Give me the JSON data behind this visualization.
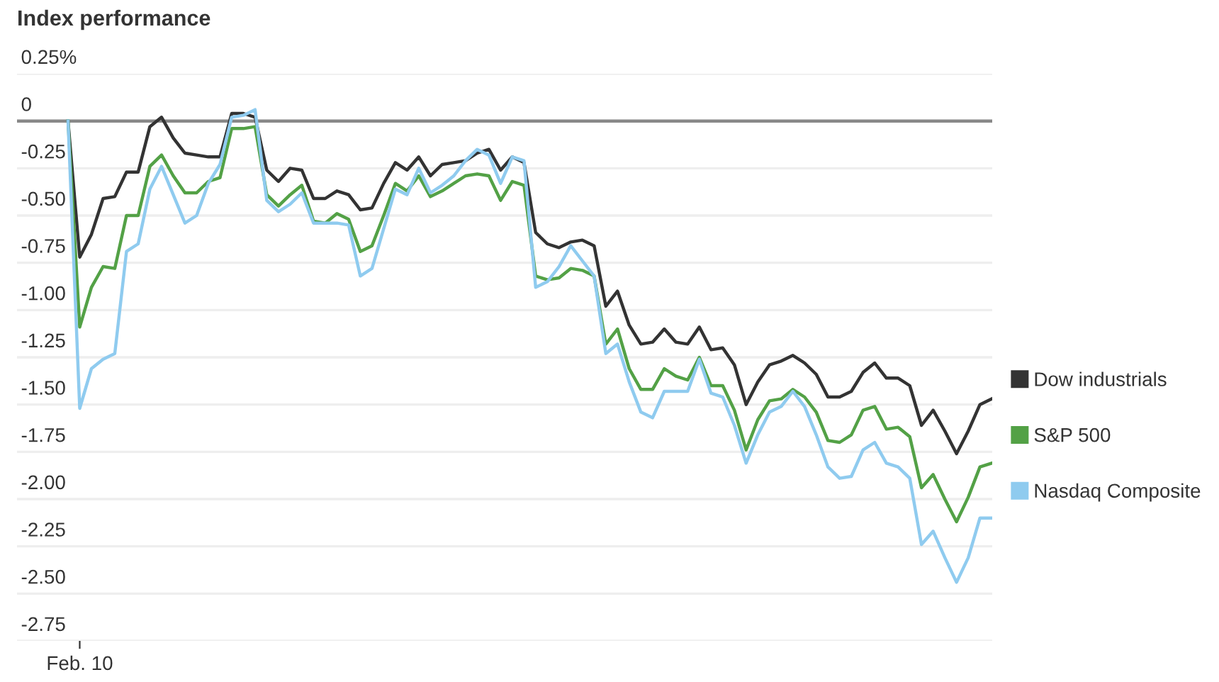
{
  "chart_data": {
    "type": "line",
    "title": "Index performance",
    "categories": [
      null,
      "Feb. 10",
      null,
      null,
      null,
      null,
      null,
      null,
      null,
      null,
      null,
      null,
      null,
      null,
      null,
      null,
      null,
      null,
      null,
      null,
      null,
      null,
      null,
      null,
      null,
      null,
      null,
      null,
      null,
      null,
      null,
      null,
      null,
      null,
      null,
      null,
      null,
      null,
      null,
      null,
      null,
      null,
      null,
      null,
      null,
      null,
      null,
      null,
      null,
      null,
      null,
      null,
      null,
      null,
      null,
      null,
      null,
      null,
      null,
      null,
      null,
      null,
      null,
      null,
      null,
      null,
      null,
      null,
      null,
      null,
      null,
      null,
      null,
      null,
      null,
      null,
      null,
      null,
      null,
      null
    ],
    "series": [
      {
        "name": "Dow industrials",
        "color": "#333333",
        "values": [
          0,
          -0.72,
          -0.6,
          -0.41,
          -0.4,
          -0.27,
          -0.27,
          -0.03,
          0.02,
          -0.09,
          -0.17,
          -0.18,
          -0.19,
          -0.19,
          0.04,
          0.04,
          0.02,
          -0.26,
          -0.32,
          -0.25,
          -0.26,
          -0.41,
          -0.41,
          -0.37,
          -0.39,
          -0.47,
          -0.46,
          -0.33,
          -0.22,
          -0.26,
          -0.19,
          -0.29,
          -0.23,
          -0.22,
          -0.21,
          -0.17,
          -0.15,
          -0.26,
          -0.19,
          -0.22,
          -0.59,
          -0.65,
          -0.67,
          -0.64,
          -0.63,
          -0.66,
          -0.98,
          -0.9,
          -1.08,
          -1.18,
          -1.17,
          -1.1,
          -1.17,
          -1.18,
          -1.09,
          -1.21,
          -1.2,
          -1.29,
          -1.5,
          -1.38,
          -1.29,
          -1.27,
          -1.24,
          -1.28,
          -1.34,
          -1.46,
          -1.46,
          -1.43,
          -1.33,
          -1.28,
          -1.36,
          -1.36,
          -1.4,
          -1.61,
          -1.53,
          -1.64,
          -1.76,
          -1.64,
          -1.5,
          -1.47
        ]
      },
      {
        "name": "S&P 500",
        "color": "#53a146",
        "values": [
          0,
          -1.09,
          -0.88,
          -0.77,
          -0.78,
          -0.5,
          -0.5,
          -0.24,
          -0.18,
          -0.29,
          -0.38,
          -0.38,
          -0.32,
          -0.3,
          -0.04,
          -0.04,
          -0.03,
          -0.39,
          -0.45,
          -0.39,
          -0.34,
          -0.53,
          -0.54,
          -0.49,
          -0.52,
          -0.69,
          -0.66,
          -0.5,
          -0.33,
          -0.37,
          -0.29,
          -0.4,
          -0.37,
          -0.33,
          -0.29,
          -0.28,
          -0.29,
          -0.42,
          -0.32,
          -0.34,
          -0.82,
          -0.84,
          -0.83,
          -0.78,
          -0.79,
          -0.82,
          -1.18,
          -1.1,
          -1.31,
          -1.42,
          -1.42,
          -1.31,
          -1.35,
          -1.37,
          -1.25,
          -1.4,
          -1.4,
          -1.53,
          -1.74,
          -1.58,
          -1.48,
          -1.47,
          -1.42,
          -1.46,
          -1.54,
          -1.69,
          -1.7,
          -1.66,
          -1.53,
          -1.51,
          -1.63,
          -1.62,
          -1.67,
          -1.94,
          -1.87,
          -2.0,
          -2.12,
          -1.99,
          -1.83,
          -1.81
        ]
      },
      {
        "name": "Nasdaq Composite",
        "color": "#8fcbef",
        "values": [
          0,
          -1.52,
          -1.31,
          -1.26,
          -1.23,
          -0.69,
          -0.65,
          -0.36,
          -0.24,
          -0.39,
          -0.54,
          -0.5,
          -0.33,
          -0.23,
          0.02,
          0.03,
          0.06,
          -0.42,
          -0.48,
          -0.44,
          -0.38,
          -0.54,
          -0.54,
          -0.54,
          -0.55,
          -0.82,
          -0.78,
          -0.57,
          -0.36,
          -0.39,
          -0.25,
          -0.38,
          -0.34,
          -0.29,
          -0.21,
          -0.15,
          -0.18,
          -0.33,
          -0.19,
          -0.21,
          -0.88,
          -0.85,
          -0.77,
          -0.66,
          -0.74,
          -0.82,
          -1.23,
          -1.18,
          -1.38,
          -1.54,
          -1.57,
          -1.43,
          -1.43,
          -1.43,
          -1.26,
          -1.44,
          -1.46,
          -1.61,
          -1.81,
          -1.66,
          -1.54,
          -1.51,
          -1.43,
          -1.51,
          -1.66,
          -1.83,
          -1.89,
          -1.88,
          -1.74,
          -1.7,
          -1.81,
          -1.83,
          -1.89,
          -2.24,
          -2.17,
          -2.31,
          -2.44,
          -2.31,
          -2.1,
          -2.1
        ]
      }
    ],
    "ylim": [
      -2.75,
      0.25
    ],
    "yticks": [
      {
        "value": 0.25,
        "label": "0.25%"
      },
      0,
      {
        "value": -0.25,
        "label": "-0.25"
      },
      {
        "value": -0.5,
        "label": "-0.50"
      },
      {
        "value": -0.75,
        "label": "-0.75"
      },
      {
        "value": -1.0,
        "label": "-1.00"
      },
      {
        "value": -1.25,
        "label": "-1.25"
      },
      {
        "value": -1.5,
        "label": "-1.50"
      },
      {
        "value": -1.75,
        "label": "-1.75"
      },
      {
        "value": -2.0,
        "label": "-2.00"
      },
      {
        "value": -2.25,
        "label": "-2.25"
      },
      {
        "value": -2.5,
        "label": "-2.50"
      },
      {
        "value": -2.75,
        "label": "-2.75"
      }
    ],
    "ref_lines": [
      {
        "axis": "y",
        "value": 0,
        "color": "#888888"
      }
    ],
    "grid": "y",
    "legend": "right",
    "marker": "none",
    "line_style": "solid"
  }
}
